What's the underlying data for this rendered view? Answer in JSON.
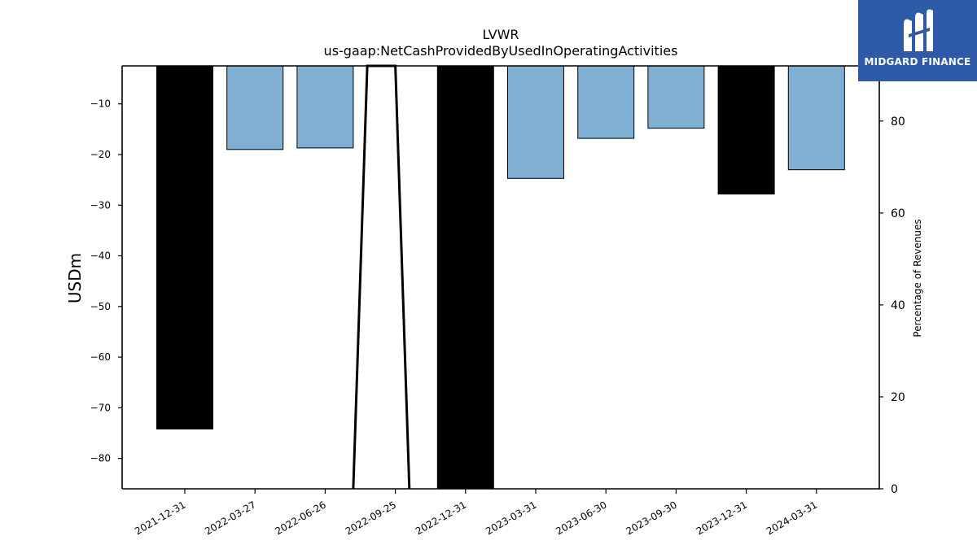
{
  "chart_data": {
    "type": "bar",
    "title": "LVWR",
    "subtitle": "us-gaap:NetCashProvidedByUsedInOperatingActivities",
    "ylabel": "USDm",
    "y2label": "Percentage of Revenues",
    "categories": [
      "2021-12-31",
      "2022-03-27",
      "2022-06-26",
      "2022-09-25",
      "2022-12-31",
      "2023-03-31",
      "2023-06-30",
      "2023-09-30",
      "2023-12-31",
      "2024-03-31"
    ],
    "values": [
      -74.2,
      -19.0,
      -18.7,
      null,
      -86.0,
      -24.7,
      -16.8,
      -14.8,
      -27.8,
      -23.0
    ],
    "bar_colors": [
      "#000000",
      "#7fb0d4",
      "#7fb0d4",
      "#7fb0d4",
      "#000000",
      "#7fb0d4",
      "#7fb0d4",
      "#7fb0d4",
      "#000000",
      "#7fb0d4"
    ],
    "ylim": [
      -86,
      -2.5
    ],
    "yticks": [
      -80,
      -70,
      -60,
      -50,
      -40,
      -30,
      -20,
      -10
    ],
    "y2lim": [
      0,
      92
    ],
    "y2ticks": [
      0,
      20,
      40,
      60,
      80
    ],
    "line_series": {
      "x_positions": [
        2.4,
        2.6,
        3.0,
        3.2
      ],
      "values": [
        0,
        92,
        92,
        0
      ]
    }
  },
  "logo": {
    "text": "MIDGARD FINANCE"
  }
}
